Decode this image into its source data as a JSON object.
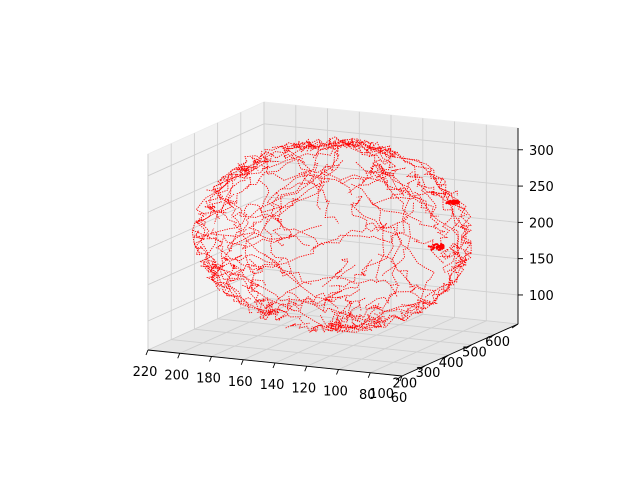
{
  "chart_data": {
    "type": "scatter3d",
    "title": "",
    "xlabel": "",
    "ylabel": "",
    "zlabel": "",
    "xlim": [
      60,
      220
    ],
    "ylim": [
      100,
      600
    ],
    "zlim": [
      60,
      330
    ],
    "x_ticks": [
      "220",
      "200",
      "180",
      "160",
      "140",
      "120",
      "100",
      "80",
      "60"
    ],
    "y_ticks": [
      "100",
      "200",
      "300",
      "400",
      "500",
      "600"
    ],
    "z_ticks": [
      "100",
      "150",
      "200",
      "250",
      "300"
    ],
    "x_tick_values": [
      220,
      200,
      180,
      160,
      140,
      120,
      100,
      80,
      60
    ],
    "y_tick_values": [
      100,
      200,
      300,
      400,
      500,
      600
    ],
    "z_tick_values": [
      100,
      150,
      200,
      250,
      300
    ],
    "series": [
      {
        "color": "#ff0000",
        "marker": "point",
        "description_shape": "sphere",
        "center": [
          140,
          350,
          200
        ],
        "radius": [
          78,
          230,
          125
        ]
      }
    ],
    "grid": true,
    "colors": {
      "points": "#ff0000",
      "background": "#ffffff"
    }
  }
}
